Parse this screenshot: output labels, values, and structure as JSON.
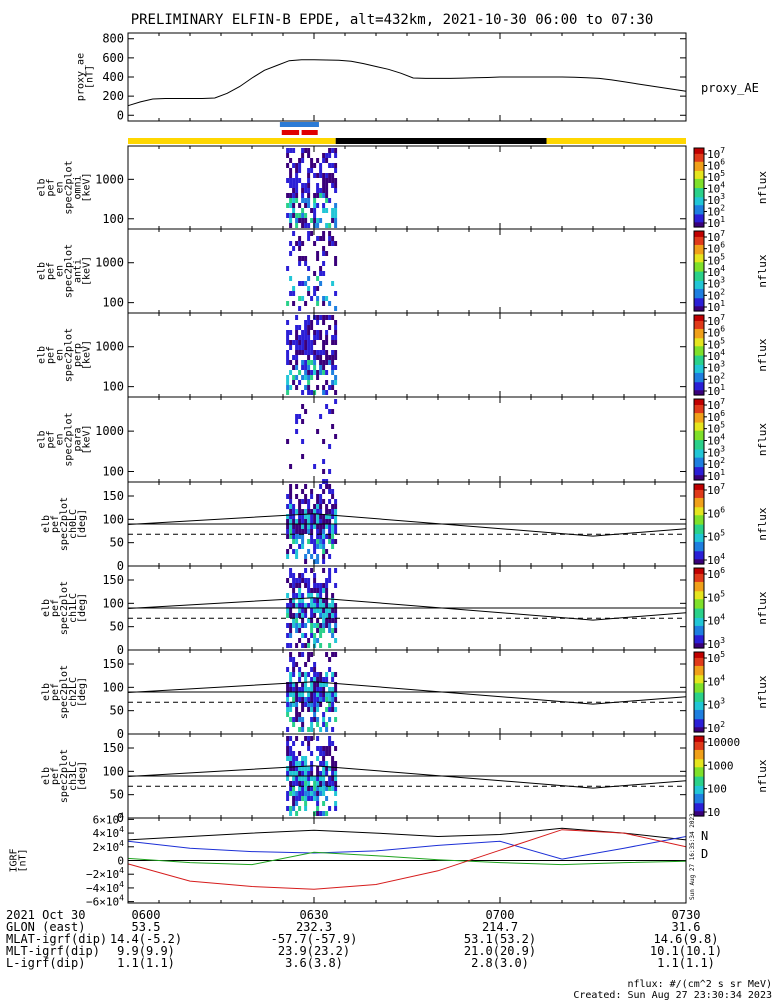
{
  "title": "PRELIMINARY ELFIN-B EPDE, alt=432km, 2021-10-30 06:00 to 07:30",
  "time": {
    "start_min": 0,
    "end_min": 90,
    "burst_start_min": 25.5,
    "burst_end_min": 33.5
  },
  "chart_data": [
    {
      "type": "line",
      "panel": "proxy_ae",
      "ylabel": "proxy_ae\n[nT]",
      "legend": "proxy_AE",
      "yticks": [
        "800",
        "600",
        "400",
        "200",
        "0"
      ],
      "ytick_values": [
        800,
        600,
        400,
        200,
        0
      ],
      "ylim": [
        -60,
        860
      ],
      "x_min": [
        0,
        2,
        4,
        6,
        8,
        10,
        12,
        14,
        16,
        18,
        20,
        22,
        24,
        26,
        28,
        30,
        32,
        34,
        36,
        38,
        40,
        42,
        44,
        46,
        48,
        50,
        52,
        54,
        56,
        58,
        60,
        62,
        64,
        66,
        68,
        70,
        72,
        74,
        76,
        78,
        80,
        82,
        84,
        86,
        88,
        90
      ],
      "y": [
        100,
        140,
        170,
        175,
        175,
        175,
        175,
        180,
        230,
        300,
        390,
        470,
        520,
        570,
        580,
        580,
        578,
        575,
        565,
        540,
        510,
        480,
        440,
        390,
        385,
        385,
        385,
        388,
        392,
        395,
        400,
        400,
        400,
        400,
        400,
        400,
        398,
        392,
        385,
        370,
        350,
        330,
        310,
        290,
        270,
        250
      ]
    },
    {
      "type": "bar",
      "panel": "status",
      "segments": [
        {
          "start": 0,
          "end": 33.5,
          "color": "#ffd700"
        },
        {
          "start": 33.5,
          "end": 67.5,
          "color": "#000000"
        },
        {
          "start": 67.5,
          "end": 90,
          "color": "#ffd700"
        }
      ],
      "markers": [
        {
          "start": 24.5,
          "end": 30.8,
          "color": "#2b7bd6",
          "row": 0
        },
        {
          "start": 24.8,
          "end": 27.6,
          "color": "#e00000",
          "row": 1
        },
        {
          "start": 28.0,
          "end": 30.6,
          "color": "#e00000",
          "row": 1
        }
      ]
    },
    {
      "type": "heatmap",
      "panel": "spec-omni",
      "ylabel": "elb\npef\nen\nspec2plot\nomni\n[keV]",
      "yscale": "log",
      "ylim": [
        55,
        7000
      ],
      "yticks": [
        "1000",
        "100"
      ],
      "ytick_values": [
        1000,
        100
      ],
      "zlabel": "nflux",
      "z_ticks": [
        "10^7",
        "10^6",
        "10^5",
        "10^4",
        "10^3",
        "10^2",
        "10^1"
      ]
    },
    {
      "type": "heatmap",
      "panel": "spec-anti",
      "ylabel": "elb\npef\nen\nspec2plot\nanti\n[keV]",
      "yscale": "log",
      "ylim": [
        55,
        7000
      ],
      "yticks": [
        "1000",
        "100"
      ],
      "ytick_values": [
        1000,
        100
      ],
      "zlabel": "nflux",
      "z_ticks": [
        "10^7",
        "10^6",
        "10^5",
        "10^4",
        "10^3",
        "10^2",
        "10^1"
      ]
    },
    {
      "type": "heatmap",
      "panel": "spec-perp",
      "ylabel": "elb\npef\nen\nspec2plot\nperp\n[keV]",
      "yscale": "log",
      "ylim": [
        55,
        7000
      ],
      "yticks": [
        "1000",
        "100"
      ],
      "ytick_values": [
        1000,
        100
      ],
      "zlabel": "nflux",
      "z_ticks": [
        "10^7",
        "10^6",
        "10^5",
        "10^4",
        "10^3",
        "10^2",
        "10^1"
      ]
    },
    {
      "type": "heatmap",
      "panel": "spec-para",
      "ylabel": "elb\npef\nen\nspec2plot\npara\n[keV]",
      "yscale": "log",
      "ylim": [
        55,
        7000
      ],
      "yticks": [
        "1000",
        "100"
      ],
      "ytick_values": [
        1000,
        100
      ],
      "zlabel": "nflux",
      "z_ticks": [
        "10^7",
        "10^6",
        "10^5",
        "10^4",
        "10^3",
        "10^2",
        "10^1"
      ]
    },
    {
      "type": "heatmap",
      "panel": "pa-ch0",
      "ylabel": "elb\npef\nspec2plot\nch0LC\n[deg]",
      "ylim": [
        0,
        180
      ],
      "yticks": [
        "150",
        "100",
        "50",
        "0"
      ],
      "ytick_values": [
        150,
        100,
        50,
        0
      ],
      "zlabel": "nflux",
      "z_ticks": [
        "10^7",
        "10^6",
        "10^5",
        "10^4"
      ],
      "lc_x": [
        0,
        30,
        75,
        90
      ],
      "lc_y": [
        89,
        112,
        64,
        80
      ],
      "alc_y": [
        68,
        68,
        68,
        68
      ]
    },
    {
      "type": "heatmap",
      "panel": "pa-ch1",
      "ylabel": "elb\npef\nspec2plot\nch1LC\n[deg]",
      "ylim": [
        0,
        180
      ],
      "yticks": [
        "150",
        "100",
        "50",
        "0"
      ],
      "ytick_values": [
        150,
        100,
        50,
        0
      ],
      "zlabel": "nflux",
      "z_ticks": [
        "10^6",
        "10^5",
        "10^4",
        "10^3"
      ],
      "lc_x": [
        0,
        30,
        75,
        90
      ],
      "lc_y": [
        89,
        112,
        64,
        80
      ],
      "alc_y": [
        68,
        68,
        68,
        68
      ]
    },
    {
      "type": "heatmap",
      "panel": "pa-ch2",
      "ylabel": "elb\npef\nspec2plot\nch2LC\n[deg]",
      "ylim": [
        0,
        180
      ],
      "yticks": [
        "150",
        "100",
        "50",
        "0"
      ],
      "ytick_values": [
        150,
        100,
        50,
        0
      ],
      "zlabel": "nflux",
      "z_ticks": [
        "10^5",
        "10^4",
        "10^3",
        "10^2"
      ],
      "lc_x": [
        0,
        30,
        75,
        90
      ],
      "lc_y": [
        89,
        112,
        64,
        80
      ],
      "alc_y": [
        68,
        68,
        68,
        68
      ]
    },
    {
      "type": "heatmap",
      "panel": "pa-ch3",
      "ylabel": "elb\npef\nspec2plot\nch3LC\n[deg]",
      "ylim": [
        0,
        180
      ],
      "yticks": [
        "150",
        "100",
        "50",
        "0"
      ],
      "ytick_values": [
        150,
        100,
        50,
        0
      ],
      "zlabel": "nflux",
      "z_ticks": [
        "10000",
        "1000",
        "100",
        "10"
      ],
      "lc_x": [
        0,
        30,
        75,
        90
      ],
      "lc_y": [
        89,
        112,
        64,
        80
      ],
      "alc_y": [
        68,
        68,
        68,
        68
      ]
    },
    {
      "type": "line",
      "panel": "igrf",
      "ylabel": "IGRF\n[nT]",
      "yticks": [
        "6×10^4",
        "4×10^4",
        "2×10^4",
        "0",
        "−2×10^4",
        "−4×10^4",
        "−6×10^4"
      ],
      "ytick_values": [
        60000,
        40000,
        20000,
        0,
        -20000,
        -40000,
        -60000
      ],
      "ylim": [
        -62000,
        62000
      ],
      "series": [
        {
          "color": "#000000",
          "x": [
            0,
            10,
            20,
            30,
            40,
            50,
            60,
            70,
            80,
            90
          ],
          "y": [
            30000,
            35000,
            40000,
            44000,
            40000,
            35000,
            38000,
            47000,
            40000,
            30000
          ]
        },
        {
          "color": "#1c2fd6",
          "x": [
            0,
            10,
            20,
            30,
            40,
            50,
            60,
            70,
            80,
            90
          ],
          "y": [
            28000,
            18000,
            13000,
            11000,
            14000,
            22000,
            28000,
            2000,
            18000,
            35000
          ]
        },
        {
          "color": "#1fa31f",
          "x": [
            0,
            10,
            20,
            30,
            40,
            50,
            60,
            70,
            80,
            90
          ],
          "y": [
            3000,
            -3000,
            -6000,
            12000,
            7000,
            1000,
            -3000,
            -6000,
            -3000,
            -1000
          ]
        },
        {
          "color": "#d61c1c",
          "x": [
            0,
            10,
            20,
            30,
            40,
            50,
            60,
            70,
            80,
            90
          ],
          "y": [
            -5000,
            -30000,
            -38000,
            -42000,
            -35000,
            -15000,
            15000,
            45000,
            40000,
            20000
          ]
        }
      ],
      "side_labels": [
        "N",
        "D"
      ],
      "timestamp": "Sun Aug 27 16:35:34 2023"
    }
  ],
  "footer": {
    "rows": [
      {
        "label": "2021 Oct 30",
        "values": [
          "0600",
          "0630",
          "0700",
          "0730"
        ]
      },
      {
        "label": "GLON (east)",
        "values": [
          "53.5",
          "232.3",
          "214.7",
          "31.6"
        ]
      },
      {
        "label": "MLAT-igrf(dip)",
        "values": [
          "14.4(-5.2)",
          "-57.7(-57.9)",
          "53.1(53.2)",
          "14.6(9.8)"
        ]
      },
      {
        "label": "MLT-igrf(dip)",
        "values": [
          "9.9(9.9)",
          "23.9(23.2)",
          "21.0(20.9)",
          "10.1(10.1)"
        ]
      },
      {
        "label": "L-igrf(dip)",
        "values": [
          "1.1(1.1)",
          "3.6(3.8)",
          "2.8(3.0)",
          "1.1(1.1)"
        ]
      }
    ],
    "units_note": "nflux: #/(cm^2 s sr MeV)",
    "created": "Created: Sun Aug 27 23:30:34 2023"
  },
  "colormap": [
    "#ffffff",
    "#3a007a",
    "#2b1fd6",
    "#1f7fe0",
    "#22c6d6",
    "#2ad18a",
    "#7fe02a",
    "#e5e51f",
    "#f0a01a",
    "#e03a1a",
    "#c00000"
  ]
}
